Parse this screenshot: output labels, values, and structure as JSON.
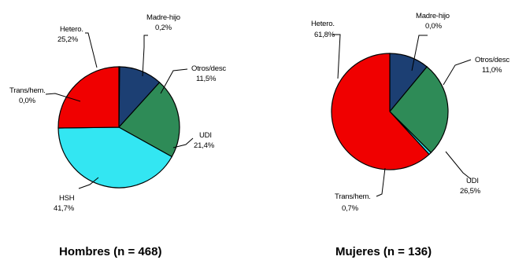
{
  "chart_data": [
    {
      "type": "pie",
      "title": "Hombres (n = 468)",
      "slices": [
        {
          "name": "Madre-hijo",
          "label": "0,2%",
          "value": 0.2,
          "color": "#1c3f73"
        },
        {
          "name": "Otros/desc",
          "label": "11,5%",
          "value": 11.5,
          "color": "#1c3f73"
        },
        {
          "name": "UDI",
          "label": "21,4%",
          "value": 21.4,
          "color": "#2e8b57"
        },
        {
          "name": "HSH",
          "label": "41,7%",
          "value": 41.7,
          "color": "#33e6f2"
        },
        {
          "name": "Trans/hem.",
          "label": "0,0%",
          "value": 0.0,
          "color": "#33e6f2"
        },
        {
          "name": "Hetero.",
          "label": "25,2%",
          "value": 25.2,
          "color": "#f00000"
        }
      ]
    },
    {
      "type": "pie",
      "title": "Mujeres (n = 136)",
      "slices": [
        {
          "name": "Madre-hijo",
          "label": "0,0%",
          "value": 0.0,
          "color": "#1c3f73"
        },
        {
          "name": "Otros/desc",
          "label": "11,0%",
          "value": 11.0,
          "color": "#1c3f73"
        },
        {
          "name": "UDI",
          "label": "26,5%",
          "value": 26.5,
          "color": "#2e8b57"
        },
        {
          "name": "Trans/hem.",
          "label": "0,7%",
          "value": 0.7,
          "color": "#33e6f2"
        },
        {
          "name": "Hetero.",
          "label": "61,8%",
          "value": 61.8,
          "color": "#f00000"
        }
      ]
    }
  ]
}
